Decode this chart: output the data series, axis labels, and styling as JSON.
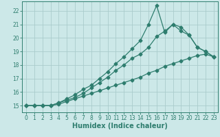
{
  "xlabel": "Humidex (Indice chaleur)",
  "background_color": "#cce8e8",
  "line_color": "#2e7d6e",
  "grid_color": "#aacccc",
  "xlim": [
    -0.5,
    23.5
  ],
  "ylim": [
    14.5,
    22.7
  ],
  "xticks": [
    0,
    1,
    2,
    3,
    4,
    5,
    6,
    7,
    8,
    9,
    10,
    11,
    12,
    13,
    14,
    15,
    16,
    17,
    18,
    19,
    20,
    21,
    22,
    23
  ],
  "yticks": [
    15,
    16,
    17,
    18,
    19,
    20,
    21,
    22
  ],
  "line1_x": [
    0,
    1,
    2,
    3,
    4,
    5,
    6,
    7,
    8,
    9,
    10,
    11,
    12,
    13,
    14,
    15,
    16,
    17,
    18,
    19,
    20,
    21,
    22,
    23
  ],
  "line1_y": [
    15.0,
    15.0,
    15.0,
    15.0,
    15.1,
    15.3,
    15.5,
    15.7,
    15.9,
    16.1,
    16.3,
    16.5,
    16.7,
    16.9,
    17.1,
    17.4,
    17.6,
    17.9,
    18.1,
    18.3,
    18.5,
    18.7,
    18.8,
    18.6
  ],
  "line2_x": [
    0,
    1,
    2,
    3,
    4,
    5,
    6,
    7,
    8,
    9,
    10,
    11,
    12,
    13,
    14,
    15,
    16,
    17,
    18,
    19,
    20,
    21,
    22,
    23
  ],
  "line2_y": [
    15.0,
    15.0,
    15.0,
    15.0,
    15.2,
    15.4,
    15.6,
    15.9,
    16.3,
    16.7,
    17.1,
    17.6,
    18.0,
    18.5,
    18.8,
    19.3,
    20.1,
    20.5,
    21.0,
    20.5,
    20.2,
    19.3,
    19.0,
    18.6
  ],
  "line3_x": [
    0,
    1,
    2,
    3,
    4,
    5,
    6,
    7,
    8,
    9,
    10,
    11,
    12,
    13,
    14,
    15,
    16,
    17,
    18,
    19,
    20,
    21,
    22,
    23
  ],
  "line3_y": [
    15.0,
    15.0,
    15.0,
    15.0,
    15.2,
    15.5,
    15.8,
    16.2,
    16.5,
    17.0,
    17.5,
    18.1,
    18.6,
    19.2,
    19.8,
    21.0,
    22.4,
    20.4,
    21.0,
    20.8,
    20.2,
    19.3,
    19.0,
    18.6
  ],
  "xlabel_fontsize": 7,
  "tick_fontsize": 5.5,
  "figwidth": 3.2,
  "figheight": 2.0,
  "dpi": 100
}
